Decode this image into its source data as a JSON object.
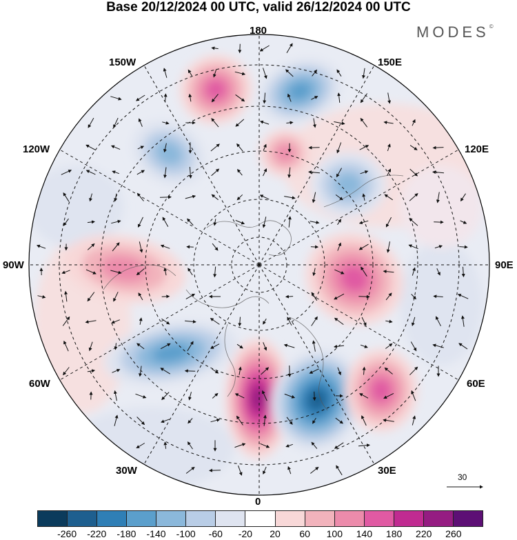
{
  "title": "Base 20/12/2024 00 UTC, valid 26/12/2024 00 UTC",
  "brand": "MODES",
  "brand_mark": "©",
  "longitude_labels": {
    "top": "180",
    "bottom": "0",
    "left": "90W",
    "right": "90E",
    "upper_left_outer": "150W",
    "upper_left_inner": "120W",
    "upper_right_outer": "150E",
    "upper_right_inner": "120E",
    "lower_left_inner": "60W",
    "lower_left_outer": "30W",
    "lower_right_inner": "60E",
    "lower_right_outer": "30E"
  },
  "reference_vector": {
    "value": "30"
  },
  "legend": {
    "colors": [
      "#0b3b5c",
      "#1e5f8f",
      "#2f7fb6",
      "#5b9fcc",
      "#8bb8db",
      "#b9cde6",
      "#dfe4f0",
      "#ffffff",
      "#f8d8d8",
      "#f2b3bc",
      "#ec8bab",
      "#e05aa3",
      "#c02b91",
      "#951c82",
      "#5d0f75"
    ],
    "ticks": [
      "-260",
      "-220",
      "-180",
      "-140",
      "-100",
      "-60",
      "-20",
      "20",
      "60",
      "100",
      "140",
      "180",
      "220",
      "260"
    ]
  },
  "anomaly_centers": [
    {
      "sign": "positive",
      "level": 3,
      "location": "north of 150W"
    },
    {
      "sign": "negative",
      "level": 3,
      "location": "near 180/150E"
    },
    {
      "sign": "negative",
      "level": 2,
      "location": "near 120W"
    },
    {
      "sign": "positive",
      "level": 2,
      "location": "near 150E/120E"
    },
    {
      "sign": "negative",
      "level": 2,
      "location": "near 120E"
    },
    {
      "sign": "positive",
      "level": 2,
      "location": "near 90W"
    },
    {
      "sign": "positive",
      "level": 3,
      "location": "near 90E"
    },
    {
      "sign": "negative",
      "level": 3,
      "location": "near 60W"
    },
    {
      "sign": "positive",
      "level": 5,
      "location": "near 0"
    },
    {
      "sign": "negative",
      "level": 5,
      "location": "near 30E"
    },
    {
      "sign": "positive",
      "level": 3,
      "location": "near 60E"
    }
  ]
}
